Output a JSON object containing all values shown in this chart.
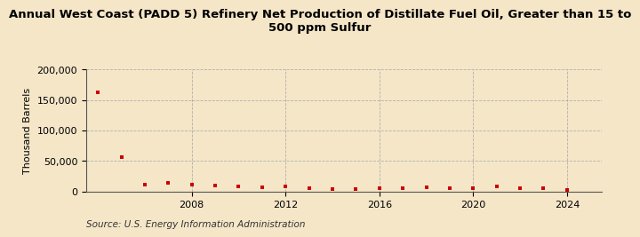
{
  "title_line1": "Annual West Coast (PADD 5) Refinery Net Production of Distillate Fuel Oil, Greater than 15 to",
  "title_line2": "500 ppm Sulfur",
  "ylabel": "Thousand Barrels",
  "source": "Source: U.S. Energy Information Administration",
  "background_color": "#f5e6c8",
  "plot_bg_color": "#f5e6c8",
  "marker_color": "#cc0000",
  "years": [
    2004,
    2005,
    2006,
    2007,
    2008,
    2009,
    2010,
    2011,
    2012,
    2013,
    2014,
    2015,
    2016,
    2017,
    2018,
    2019,
    2020,
    2021,
    2022,
    2023,
    2024
  ],
  "values": [
    163000,
    57000,
    12000,
    14500,
    12000,
    10000,
    9000,
    7000,
    8000,
    5000,
    4000,
    4000,
    5000,
    5000,
    7000,
    5000,
    5500,
    9000,
    6000,
    5000,
    3000
  ],
  "ylim": [
    0,
    200000
  ],
  "yticks": [
    0,
    50000,
    100000,
    150000,
    200000
  ],
  "xlim": [
    2003.5,
    2025.5
  ],
  "xticks": [
    2008,
    2012,
    2016,
    2020,
    2024
  ],
  "grid_color": "#aaaaaa",
  "title_fontsize": 9.5,
  "axis_fontsize": 8,
  "source_fontsize": 7.5
}
